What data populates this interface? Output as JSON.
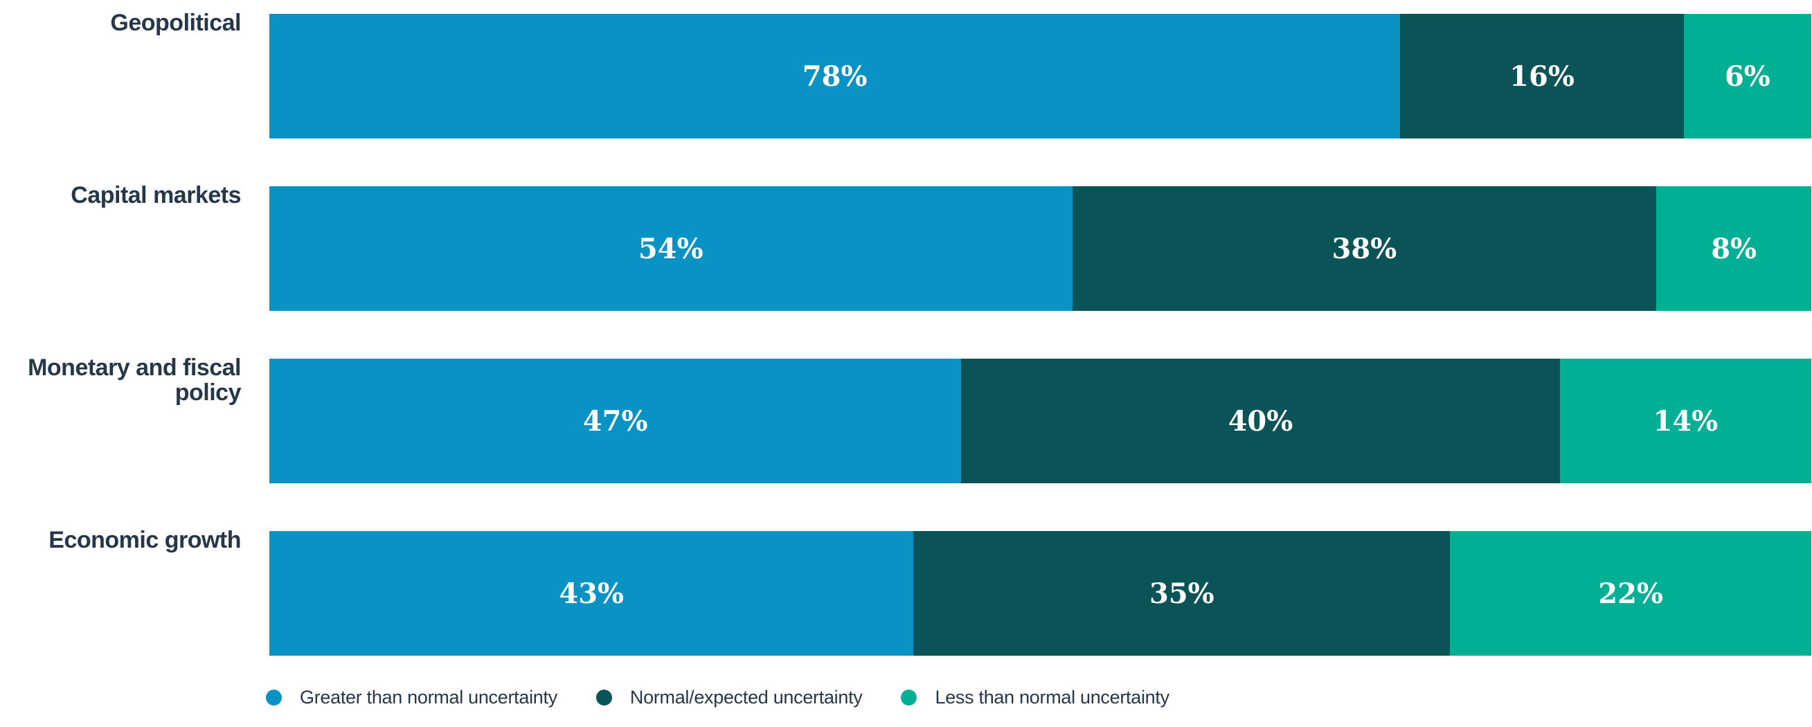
{
  "chart_data": {
    "type": "bar",
    "variant": "horizontal-stacked",
    "title": "",
    "xlabel": "",
    "ylabel": "",
    "xlim": [
      0,
      100
    ],
    "grid": false,
    "legend_position": "bottom-left",
    "value_format": "percent",
    "categories": [
      "Geopolitical",
      "Capital markets",
      "Monetary and fiscal policy",
      "Economic growth"
    ],
    "series": [
      {
        "name": "Greater than normal uncertainty",
        "color": "#0893C4",
        "values": [
          78,
          54,
          47,
          43
        ]
      },
      {
        "name": "Normal/expected uncertainty",
        "color": "#0A5356",
        "values": [
          16,
          38,
          40,
          35
        ]
      },
      {
        "name": "Less than normal uncertainty",
        "color": "#00AF94",
        "values": [
          6,
          8,
          14,
          22
        ]
      }
    ],
    "bar_labels": [
      [
        "78%",
        "16%",
        "6%"
      ],
      [
        "54%",
        "38%",
        "8%"
      ],
      [
        "47%",
        "40%",
        "14%"
      ],
      [
        "43%",
        "35%",
        "22%"
      ]
    ]
  },
  "colors": {
    "background": "#FFFFFF",
    "category_label_text": "#253748",
    "bar_value_text": "#FFFFFF"
  }
}
